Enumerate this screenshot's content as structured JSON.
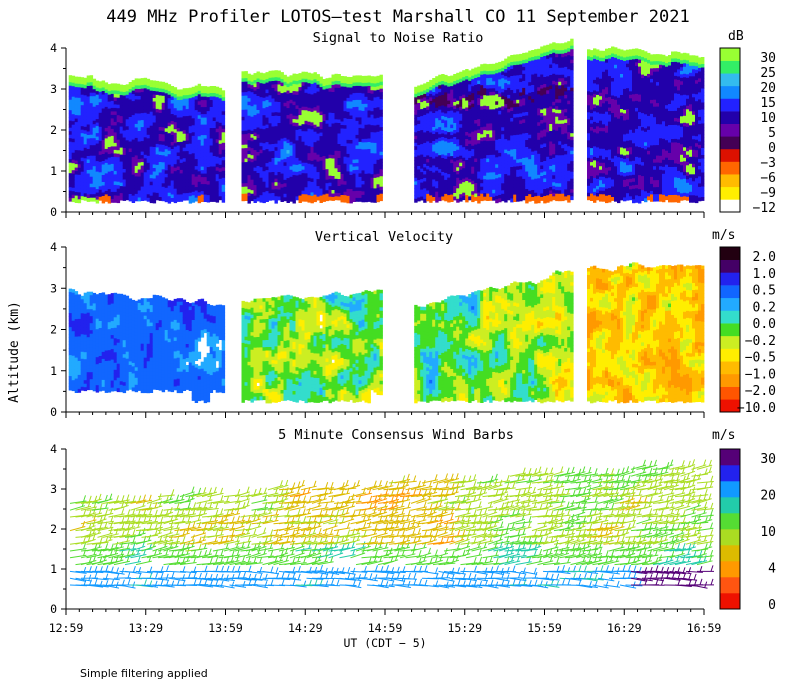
{
  "title": "449 MHz Profiler LOTOS—test Marshall CO 11 September 2021",
  "footnote": "Simple filtering applied",
  "colors": {
    "snr": [
      "#99ff33",
      "#33ee66",
      "#33bbee",
      "#1188ff",
      "#2222ff",
      "#2200aa",
      "#6600aa",
      "#440055",
      "#dd1100",
      "#ff6600",
      "#ffbb00",
      "#ffee00",
      "#ffffff"
    ],
    "vvel": [
      "#220011",
      "#440066",
      "#2222ee",
      "#1166ff",
      "#22aaff",
      "#33ddcc",
      "#44dd22",
      "#ccee22",
      "#ffee00",
      "#ffbb00",
      "#ff9900",
      "#ff5500",
      "#ee1100"
    ],
    "wind": [
      "#550077",
      "#2222ee",
      "#1199ff",
      "#22ccaa",
      "#55dd33",
      "#aadd22",
      "#ddbb00",
      "#ff9900",
      "#ff5511",
      "#ee1100"
    ]
  },
  "chart_data": [
    {
      "type": "heatmap",
      "title": "Signal to Noise Ratio",
      "ylabel": "Altitude (km)",
      "ylim": [
        0,
        4
      ],
      "yticks": [
        "0",
        "1",
        "2",
        "3",
        "4"
      ],
      "xlim_ut": [
        "12:59",
        "16:59"
      ],
      "colorbar_unit": "dB",
      "colorbar_labels": [
        "30",
        "25",
        "20",
        "15",
        "10",
        "5",
        "0",
        "−3",
        "−6",
        "−9",
        "−12"
      ],
      "data_segments_ut": [
        [
          "13:00",
          "13:58"
        ],
        [
          "14:05",
          "14:58"
        ],
        [
          "15:10",
          "16:09"
        ],
        [
          "16:15",
          "16:58"
        ]
      ]
    },
    {
      "type": "heatmap",
      "title": "Vertical Velocity",
      "ylabel": "Altitude (km)",
      "ylim": [
        0,
        4
      ],
      "yticks": [
        "0",
        "1",
        "2",
        "3",
        "4"
      ],
      "colorbar_unit": "m/s",
      "colorbar_labels": [
        "2.0",
        "1.0",
        "0.5",
        "0.2",
        "0.0",
        "−0.2",
        "−0.5",
        "−1.0",
        "−2.0",
        "−10.0"
      ]
    },
    {
      "type": "scatter",
      "title": "5 Minute Consensus Wind Barbs",
      "ylabel": "Altitude (km)",
      "ylim": [
        0,
        4
      ],
      "yticks": [
        "0",
        "1",
        "2",
        "3",
        "4"
      ],
      "xlabel": "UT  (CDT − 5)",
      "xticks": [
        "12:59",
        "13:29",
        "13:59",
        "14:29",
        "14:59",
        "15:29",
        "15:59",
        "16:29",
        "16:59"
      ],
      "colorbar_unit": "m/s",
      "colorbar_labels": [
        "30",
        "20",
        "10",
        "4",
        "0"
      ]
    }
  ]
}
